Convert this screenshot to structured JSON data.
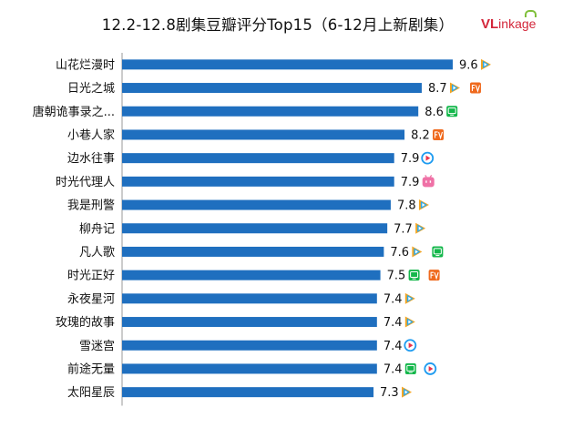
{
  "header": {
    "title": "12.2-12.8剧集豆瓣评分Top15（6-12月上新剧集）",
    "logo_main": "VL",
    "logo_rest": "inkage"
  },
  "colors": {
    "bar": "#1f6fbf",
    "axis": "#9a9a9a",
    "platform": {
      "tencent": "#2fa8e6",
      "youku": "#1e9bf0",
      "iqiyi": "#14b74b",
      "mango": "#ef6a1e",
      "bilibili": "#ef71a6"
    }
  },
  "chart_data": {
    "type": "bar",
    "orientation": "horizontal",
    "title": "12.2-12.8剧集豆瓣评分Top15（6-12月上新剧集）",
    "categories": [
      "山花烂漫时",
      "日光之城",
      "唐朝诡事录之...",
      "小巷人家",
      "边水往事",
      "时光代理人",
      "我是刑警",
      "柳舟记",
      "凡人歌",
      "时光正好",
      "永夜星河",
      "玫瑰的故事",
      "雪迷宫",
      "前途无量",
      "太阳星辰"
    ],
    "values": [
      9.6,
      8.7,
      8.6,
      8.2,
      7.9,
      7.9,
      7.8,
      7.7,
      7.6,
      7.5,
      7.4,
      7.4,
      7.4,
      7.4,
      7.3
    ],
    "value_labels": [
      "9.6",
      "8.7",
      "8.6",
      "8.2",
      "7.9",
      "7.9",
      "7.8",
      "7.7",
      "7.6",
      "7.5",
      "7.4",
      "7.4",
      "7.4",
      "7.4",
      "7.3"
    ],
    "platforms": [
      [
        "tencent"
      ],
      [
        "tencent",
        "mango"
      ],
      [
        "iqiyi"
      ],
      [
        "mango"
      ],
      [
        "youku"
      ],
      [
        "bilibili"
      ],
      [
        "tencent"
      ],
      [
        "tencent"
      ],
      [
        "tencent",
        "iqiyi"
      ],
      [
        "iqiyi",
        "mango"
      ],
      [
        "tencent"
      ],
      [
        "tencent"
      ],
      [
        "youku"
      ],
      [
        "iqiyi",
        "youku"
      ],
      [
        "tencent"
      ]
    ],
    "xlim": [
      0,
      9.6
    ],
    "grid": false,
    "xlabel": "",
    "ylabel": ""
  }
}
